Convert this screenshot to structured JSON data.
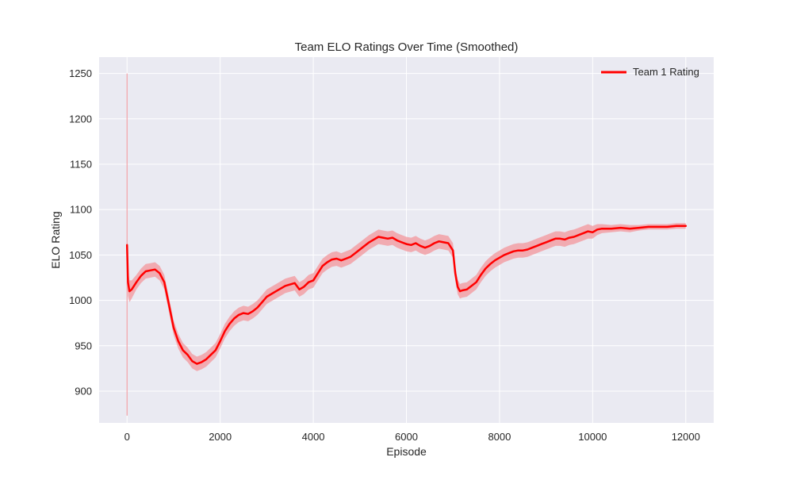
{
  "chart_data": {
    "type": "line",
    "title": "Team ELO Ratings Over Time (Smoothed)",
    "xlabel": "Episode",
    "ylabel": "ELO Rating",
    "xlim": [
      -600,
      12600
    ],
    "ylim": [
      865,
      1268
    ],
    "xticks": [
      0,
      2000,
      4000,
      6000,
      8000,
      10000,
      12000
    ],
    "yticks": [
      900,
      950,
      1000,
      1050,
      1100,
      1150,
      1200,
      1250
    ],
    "grid": true,
    "legend_position": "top-right",
    "background": "#eaeaf2",
    "grid_color": "#ffffff",
    "series": [
      {
        "name": "Team 1 Rating",
        "color": "#ff0000",
        "band_color": "#f2a0a6",
        "x": [
          0,
          20,
          50,
          100,
          200,
          300,
          400,
          500,
          600,
          700,
          800,
          900,
          1000,
          1100,
          1200,
          1300,
          1400,
          1500,
          1600,
          1700,
          1800,
          1900,
          2000,
          2100,
          2200,
          2300,
          2400,
          2500,
          2600,
          2700,
          2800,
          2900,
          3000,
          3200,
          3400,
          3600,
          3700,
          3800,
          3900,
          4000,
          4100,
          4200,
          4300,
          4400,
          4500,
          4600,
          4700,
          4800,
          4900,
          5000,
          5100,
          5200,
          5300,
          5400,
          5500,
          5600,
          5700,
          5800,
          5900,
          6000,
          6100,
          6200,
          6300,
          6400,
          6500,
          6600,
          6700,
          6800,
          6900,
          7000,
          7050,
          7100,
          7150,
          7200,
          7300,
          7400,
          7500,
          7600,
          7700,
          7800,
          7900,
          8000,
          8100,
          8200,
          8300,
          8400,
          8500,
          8600,
          8700,
          8800,
          8900,
          9000,
          9100,
          9200,
          9300,
          9400,
          9500,
          9600,
          9700,
          9800,
          9900,
          10000,
          10100,
          10200,
          10400,
          10600,
          10800,
          11000,
          11200,
          11400,
          11600,
          11800,
          12000
        ],
        "y": [
          1061,
          1020,
          1010,
          1012,
          1020,
          1027,
          1032,
          1033,
          1034,
          1030,
          1020,
          995,
          970,
          955,
          945,
          940,
          933,
          930,
          932,
          935,
          940,
          945,
          955,
          966,
          974,
          980,
          984,
          986,
          985,
          988,
          992,
          998,
          1004,
          1010,
          1016,
          1019,
          1012,
          1015,
          1020,
          1022,
          1030,
          1038,
          1042,
          1045,
          1046,
          1044,
          1046,
          1048,
          1052,
          1056,
          1060,
          1064,
          1067,
          1070,
          1069,
          1068,
          1069,
          1066,
          1064,
          1062,
          1061,
          1063,
          1060,
          1058,
          1060,
          1063,
          1065,
          1064,
          1063,
          1055,
          1030,
          1015,
          1010,
          1011,
          1012,
          1016,
          1020,
          1028,
          1035,
          1040,
          1044,
          1047,
          1050,
          1052,
          1054,
          1055,
          1055,
          1056,
          1058,
          1060,
          1062,
          1064,
          1066,
          1068,
          1068,
          1067,
          1069,
          1070,
          1072,
          1074,
          1076,
          1075,
          1078,
          1079,
          1079,
          1080,
          1079,
          1080,
          1081,
          1081,
          1081,
          1082,
          1082
        ],
        "band_halfwidth": [
          6,
          15,
          12,
          10,
          8,
          8,
          8,
          8,
          8,
          8,
          8,
          8,
          8,
          8,
          8,
          8,
          8,
          8,
          8,
          8,
          8,
          8,
          8,
          8,
          8,
          8,
          8,
          8,
          8,
          8,
          8,
          8,
          8,
          8,
          8,
          8,
          8,
          8,
          8,
          8,
          8,
          8,
          8,
          8,
          8,
          8,
          8,
          8,
          8,
          8,
          8,
          8,
          8,
          8,
          8,
          8,
          8,
          8,
          8,
          8,
          8,
          8,
          8,
          8,
          8,
          8,
          8,
          8,
          8,
          8,
          8,
          8,
          8,
          8,
          8,
          8,
          8,
          8,
          8,
          8,
          8,
          8,
          8,
          8,
          8,
          8,
          8,
          8,
          8,
          8,
          8,
          8,
          8,
          8,
          8,
          8,
          8,
          8,
          8,
          8,
          8,
          7,
          6,
          5,
          4,
          4,
          4,
          3,
          3,
          3,
          3,
          3,
          3
        ],
        "spike": {
          "x": 0,
          "ymin": 873,
          "ymax": 1250
        }
      }
    ]
  }
}
